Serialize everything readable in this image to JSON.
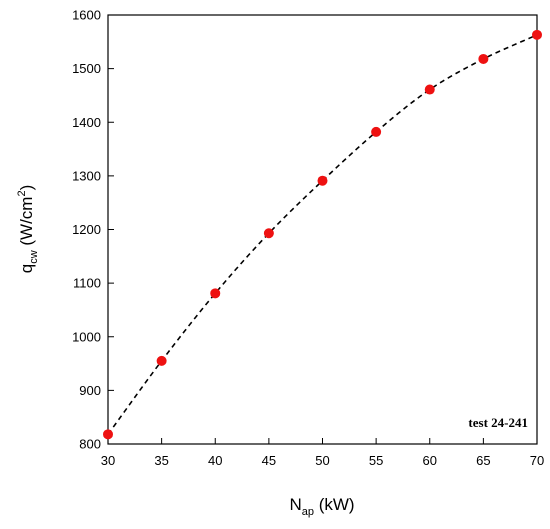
{
  "chart_data": {
    "type": "scatter",
    "x": [
      30,
      35,
      40,
      45,
      50,
      55,
      60,
      65,
      70
    ],
    "y": [
      818,
      955,
      1081,
      1193,
      1291,
      1382,
      1461,
      1518,
      1563
    ],
    "xlim": [
      30,
      70
    ],
    "ylim": [
      800,
      1600
    ],
    "xticks": [
      30,
      35,
      40,
      45,
      50,
      55,
      60,
      65,
      70
    ],
    "yticks": [
      800,
      900,
      1000,
      1100,
      1200,
      1300,
      1400,
      1500,
      1600
    ],
    "xlabel": {
      "main": "N",
      "sub": "ap",
      "rest": " (kW)"
    },
    "ylabel": {
      "main": "q",
      "sub": "cw",
      "pre": " (W/cm",
      "sup": "2",
      "post": ")"
    },
    "annotation": "test 24-241",
    "fit_line": "dashed",
    "grid": false,
    "marker_color": "#ee1111",
    "line_color": "#000000"
  }
}
